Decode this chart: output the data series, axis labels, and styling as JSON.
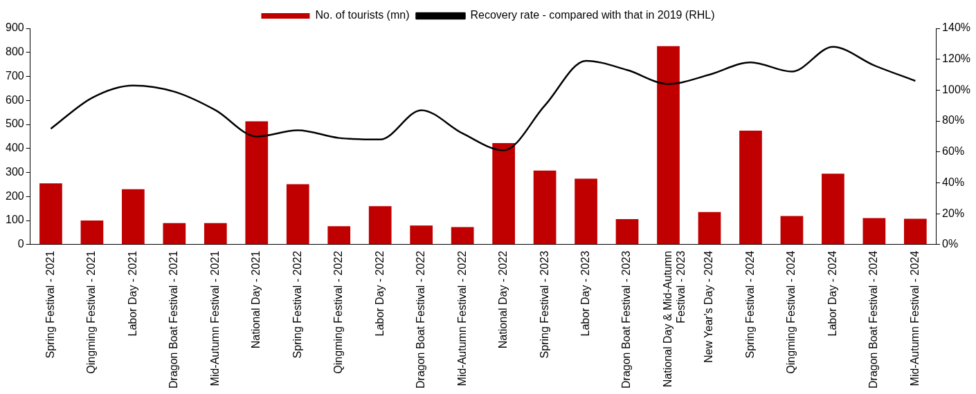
{
  "chart_data": {
    "type": "bar",
    "categories": [
      "Spring Festival - 2021",
      "Qingming Festival - 2021",
      "Labor Day - 2021",
      "Dragon Boat Festival - 2021",
      "Mid-Autumn Festival - 2021",
      "National Day - 2021",
      "Spring Festival - 2022",
      "Qingming Festival - 2022",
      "Labor Day - 2022",
      "Dragon Boat Festival - 2022",
      "Mid-Autumn Festival - 2022",
      "National Day - 2022",
      "Spring Festival - 2023",
      "Labor Day - 2023",
      "Dragon Boat Festival - 2023",
      "National Day & Mid-Autumn Festival - 2023",
      "New Year's Day - 2024",
      "Spring Festival - 2024",
      "Qingming Festival - 2024",
      "Labor Day - 2024",
      "Dragon Boat Festival - 2024",
      "Mid-Autumn Festival - 2024"
    ],
    "series": [
      {
        "name": "No. of tourists (mn)",
        "color": "#c00000",
        "values": [
          255,
          100,
          230,
          89,
          89,
          513,
          251,
          76,
          160,
          79,
          73,
          422,
          308,
          274,
          106,
          826,
          135,
          474,
          119,
          295,
          110,
          107
        ]
      },
      {
        "name": "Recovery rate - compared with that in 2019 (RHL)",
        "type": "line",
        "axis": "y2",
        "color": "#000000",
        "values": [
          75,
          95,
          103,
          99,
          87,
          70,
          74,
          69,
          68,
          87,
          72,
          61,
          90,
          119,
          113,
          104,
          110,
          118,
          112,
          128,
          116,
          106
        ]
      }
    ],
    "ylim": [
      0,
      900
    ],
    "yticks": [
      0,
      100,
      200,
      300,
      400,
      500,
      600,
      700,
      800,
      900
    ],
    "y2lim": [
      0,
      140
    ],
    "y2ticks": [
      {
        "value": 0,
        "label": "0%"
      },
      {
        "value": 20,
        "label": "20%"
      },
      {
        "value": 40,
        "label": "40%"
      },
      {
        "value": 60,
        "label": "60%"
      },
      {
        "value": 80,
        "label": "80%"
      },
      {
        "value": 100,
        "label": "100%"
      },
      {
        "value": 120,
        "label": "120%"
      },
      {
        "value": 140,
        "label": "140%"
      }
    ],
    "grid": false,
    "legend": "top",
    "marker": "none"
  }
}
